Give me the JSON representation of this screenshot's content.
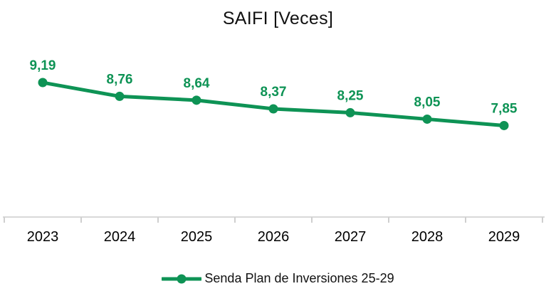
{
  "chart_data": {
    "type": "line",
    "title": "SAIFI [Veces]",
    "categories": [
      "2023",
      "2024",
      "2025",
      "2026",
      "2027",
      "2028",
      "2029"
    ],
    "series": [
      {
        "name": "Senda Plan de Inversiones 25-29",
        "values": [
          9.19,
          8.76,
          8.64,
          8.37,
          8.25,
          8.05,
          7.85
        ],
        "data_labels": [
          "9,19",
          "8,76",
          "8,64",
          "8,37",
          "8,25",
          "8,05",
          "7,85"
        ]
      }
    ],
    "ylim": [
      5,
      9.6
    ],
    "xlabel": "",
    "ylabel": "",
    "grid": false,
    "legend_position": "bottom",
    "colors": {
      "series": "#0E9355",
      "data_label_text": "#0E9355",
      "axis_line": "#D9D9D9",
      "tick_mark": "#CFCFCF",
      "axis_text": "#000000",
      "title_text": "#111111"
    }
  }
}
